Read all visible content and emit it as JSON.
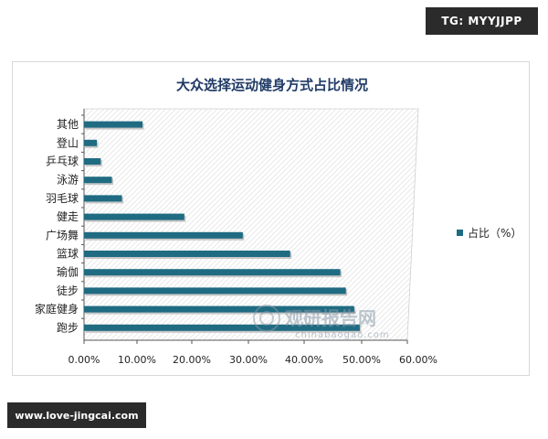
{
  "corner_tag": "TG: MYYJJPP",
  "website": "www.love-jingcai.com",
  "watermark": {
    "name": "观研报告网",
    "domain": "chinabaogao.com"
  },
  "colors": {
    "bar": "#1f6b82",
    "bar_shadow": "#c6c6c6",
    "title": "#1f3a66"
  },
  "chart_data": {
    "type": "bar",
    "orientation": "horizontal",
    "title": "大众选择运动健身方式占比情况",
    "categories": [
      "其他",
      "登山",
      "乒乓球",
      "泳游",
      "羽毛球",
      "健走",
      "广场舞",
      "篮球",
      "瑜伽",
      "徒步",
      "家庭健身",
      "跑步"
    ],
    "series": [
      {
        "name": "占比（%）",
        "values": [
          10.5,
          2.3,
          3.0,
          5.0,
          6.8,
          18.0,
          28.5,
          37.0,
          46.0,
          47.0,
          48.5,
          49.5
        ]
      }
    ],
    "xlim": [
      0,
      60
    ],
    "xticks": [
      "0.00%",
      "10.00%",
      "20.00%",
      "30.00%",
      "40.00%",
      "50.00%",
      "60.00%"
    ],
    "legend": "right",
    "grid": false,
    "plot_background": "diagonal-hatch"
  }
}
